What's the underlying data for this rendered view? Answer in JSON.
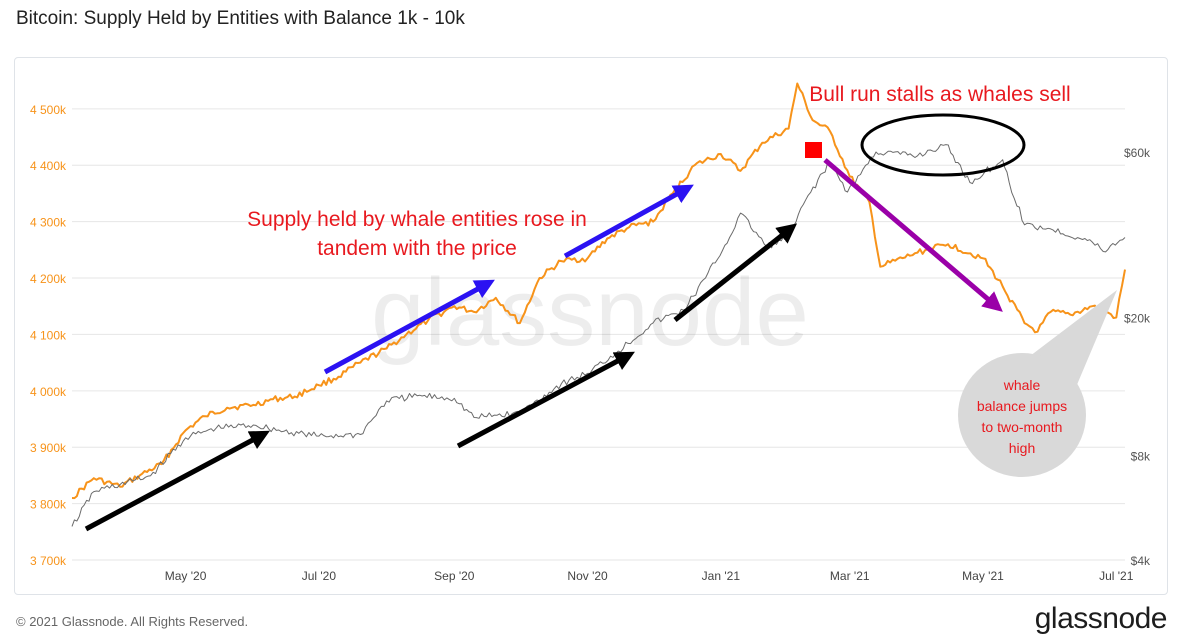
{
  "header": {
    "title": "Bitcoin: Supply Held by Entities with Balance 1k - 10k"
  },
  "footer": {
    "copyright": "© 2021 Glassnode. All Rights Reserved.",
    "brand": "glassnode"
  },
  "watermark": "glassnode",
  "colors": {
    "supply": "#f7931a",
    "price": "#6b6b6b",
    "grid": "#e6e6e6",
    "annotation_red": "#e8191f",
    "arrow_blue": "#2b12f2",
    "arrow_purple": "#9a00a8",
    "arrow_black": "#000000",
    "callout_bg": "#d9d9d9",
    "marker": "#ff0000"
  },
  "chart_data": {
    "type": "line",
    "title": "Bitcoin: Supply Held by Entities with Balance 1k - 10k",
    "x_ticks": [
      "May '20",
      "Jul '20",
      "Sep '20",
      "Nov '20",
      "Jan '21",
      "Mar '21",
      "May '21",
      "Jul '21"
    ],
    "x_range": [
      "2020-03-10",
      "2021-07-05"
    ],
    "y_left": {
      "ticks": [
        "3 700k",
        "3 800k",
        "3 900k",
        "4 000k",
        "4 100k",
        "4 200k",
        "4 300k",
        "4 400k",
        "4 500k"
      ],
      "range": [
        3700000,
        4560000
      ],
      "color": "#f7931a"
    },
    "y_right": {
      "ticks": [
        "$4k",
        "$8k",
        "$20k",
        "$60k"
      ],
      "scale": "log",
      "range": [
        4000,
        100000
      ]
    },
    "grid": true,
    "series": [
      {
        "key": "supply",
        "color": "#f7931a",
        "points": [
          [
            "2020-03-10",
            3810000
          ],
          [
            "2020-03-20",
            3845000
          ],
          [
            "2020-04-01",
            3830000
          ],
          [
            "2020-04-10",
            3850000
          ],
          [
            "2020-04-20",
            3870000
          ],
          [
            "2020-05-01",
            3930000
          ],
          [
            "2020-05-10",
            3955000
          ],
          [
            "2020-05-20",
            3970000
          ],
          [
            "2020-06-01",
            3975000
          ],
          [
            "2020-06-10",
            3985000
          ],
          [
            "2020-06-20",
            3990000
          ],
          [
            "2020-07-01",
            4010000
          ],
          [
            "2020-07-10",
            4025000
          ],
          [
            "2020-07-20",
            4050000
          ],
          [
            "2020-08-01",
            4075000
          ],
          [
            "2020-08-10",
            4100000
          ],
          [
            "2020-08-20",
            4125000
          ],
          [
            "2020-09-01",
            4150000
          ],
          [
            "2020-09-10",
            4140000
          ],
          [
            "2020-09-20",
            4165000
          ],
          [
            "2020-10-01",
            4120000
          ],
          [
            "2020-10-10",
            4200000
          ],
          [
            "2020-10-20",
            4230000
          ],
          [
            "2020-11-01",
            4235000
          ],
          [
            "2020-11-10",
            4270000
          ],
          [
            "2020-11-20",
            4290000
          ],
          [
            "2020-12-01",
            4300000
          ],
          [
            "2020-12-10",
            4350000
          ],
          [
            "2020-12-20",
            4400000
          ],
          [
            "2021-01-01",
            4420000
          ],
          [
            "2021-01-10",
            4390000
          ],
          [
            "2021-01-20",
            4440000
          ],
          [
            "2021-02-01",
            4465000
          ],
          [
            "2021-02-05",
            4545000
          ],
          [
            "2021-02-12",
            4480000
          ],
          [
            "2021-02-20",
            4460000
          ],
          [
            "2021-03-01",
            4380000
          ],
          [
            "2021-03-10",
            4335000
          ],
          [
            "2021-03-15",
            4220000
          ],
          [
            "2021-04-01",
            4245000
          ],
          [
            "2021-04-15",
            4260000
          ],
          [
            "2021-05-01",
            4235000
          ],
          [
            "2021-05-10",
            4185000
          ],
          [
            "2021-05-20",
            4120000
          ],
          [
            "2021-05-26",
            4105000
          ],
          [
            "2021-06-01",
            4140000
          ],
          [
            "2021-06-10",
            4135000
          ],
          [
            "2021-06-20",
            4150000
          ],
          [
            "2021-06-26",
            4140000
          ],
          [
            "2021-07-01",
            4130000
          ],
          [
            "2021-07-05",
            4215000
          ]
        ]
      },
      {
        "key": "price",
        "color": "#6b6b6b",
        "points": [
          [
            "2020-03-10",
            5000
          ],
          [
            "2020-03-20",
            6300
          ],
          [
            "2020-04-01",
            6600
          ],
          [
            "2020-04-15",
            7000
          ],
          [
            "2020-05-01",
            9000
          ],
          [
            "2020-05-15",
            9600
          ],
          [
            "2020-06-01",
            9800
          ],
          [
            "2020-06-15",
            9400
          ],
          [
            "2020-07-01",
            9100
          ],
          [
            "2020-07-20",
            9200
          ],
          [
            "2020-08-01",
            11500
          ],
          [
            "2020-08-15",
            11900
          ],
          [
            "2020-09-01",
            11700
          ],
          [
            "2020-09-10",
            10300
          ],
          [
            "2020-10-01",
            10600
          ],
          [
            "2020-10-20",
            12900
          ],
          [
            "2020-11-01",
            13800
          ],
          [
            "2020-11-15",
            16000
          ],
          [
            "2020-12-01",
            19300
          ],
          [
            "2020-12-15",
            21000
          ],
          [
            "2020-12-25",
            26000
          ],
          [
            "2021-01-05",
            34000
          ],
          [
            "2021-01-10",
            40000
          ],
          [
            "2021-01-22",
            32000
          ],
          [
            "2021-02-01",
            34000
          ],
          [
            "2021-02-10",
            45000
          ],
          [
            "2021-02-20",
            56000
          ],
          [
            "2021-02-28",
            46000
          ],
          [
            "2021-03-13",
            60000
          ],
          [
            "2021-04-01",
            58500
          ],
          [
            "2021-04-14",
            63000
          ],
          [
            "2021-04-25",
            49000
          ],
          [
            "2021-05-10",
            57000
          ],
          [
            "2021-05-13",
            49000
          ],
          [
            "2021-05-20",
            37000
          ],
          [
            "2021-06-01",
            36000
          ],
          [
            "2021-06-20",
            33000
          ],
          [
            "2021-06-25",
            31000
          ],
          [
            "2021-07-05",
            34000
          ]
        ]
      }
    ],
    "annotations": [
      {
        "key": "bull_stall",
        "text": "Bull run stalls as whales sell"
      },
      {
        "key": "supply_rose",
        "lines": [
          "Supply held by whale entities rose in",
          "tandem with the price"
        ]
      },
      {
        "key": "callout",
        "lines": [
          "whale",
          "balance jumps",
          "to two-month",
          "high"
        ]
      }
    ]
  }
}
